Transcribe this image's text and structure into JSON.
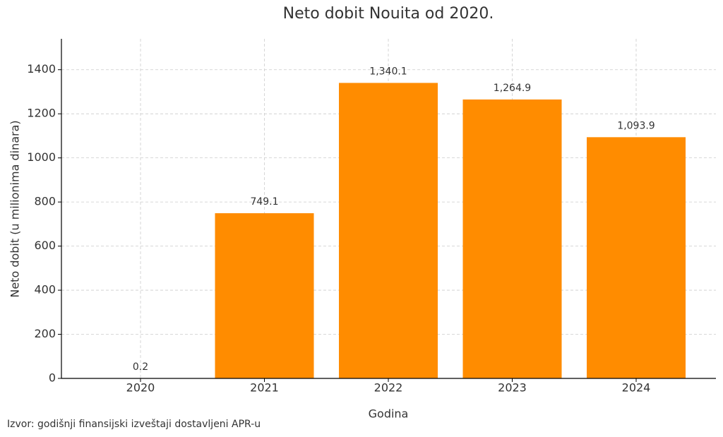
{
  "chart_data": {
    "type": "bar",
    "title": "Neto dobit Nouita od 2020.",
    "x_label": "Godina",
    "y_label": "Neto dobit (u milionima dinara)",
    "source": "Izvor: godišnji finansijski izveštaji dostavljeni APR-u",
    "categories": [
      "2020",
      "2021",
      "2022",
      "2023",
      "2024"
    ],
    "values": [
      0.2,
      749.1,
      1340.1,
      1264.9,
      1093.9
    ],
    "value_labels": [
      "0.2",
      "749.1",
      "1,340.1",
      "1,264.9",
      "1,093.9"
    ],
    "color": "#ff8c00",
    "ylim": [
      0,
      1540
    ],
    "yticks": [
      0,
      200,
      400,
      600,
      800,
      1000,
      1200,
      1400
    ],
    "grid": true
  }
}
